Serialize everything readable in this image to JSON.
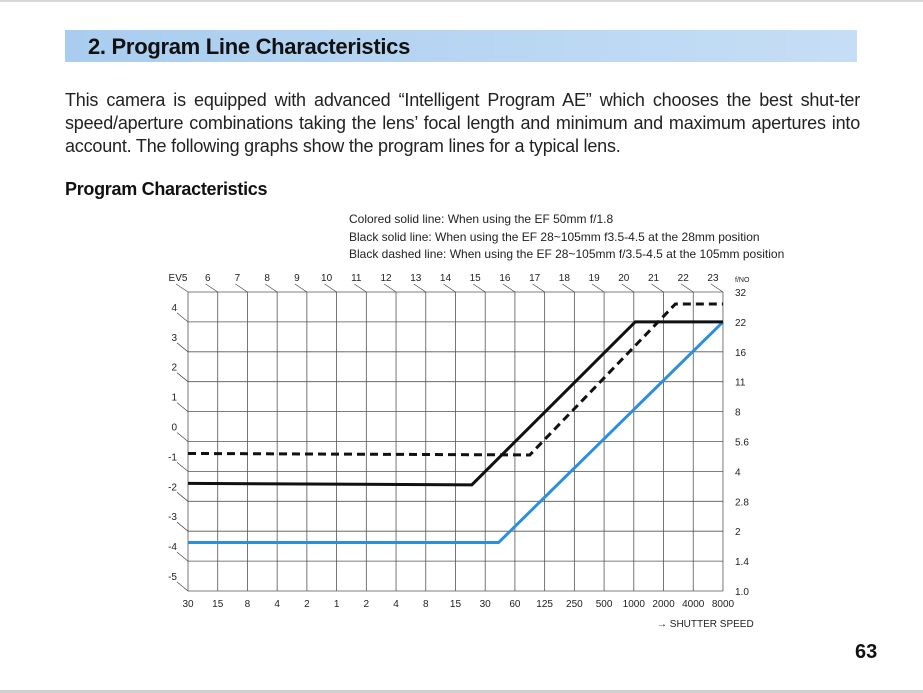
{
  "header": {
    "title": "2. Program Line Characteristics"
  },
  "intro": "This camera is equipped with advanced “Intelligent Program AE” which chooses the best shut-ter speed/aperture combinations taking the lens’ focal length and minimum and maximum apertures into account. The following graphs show the program lines for a typical lens.",
  "subtitle": "Program Characteristics",
  "legend": [
    "Colored solid line: When using the EF 50mm f/1.8",
    "Black solid line: When using the EF 28~105mm f3.5-4.5 at the 28mm position",
    "Black dashed line: When using the EF 28~105mm f/3.5-4.5 at the 105mm position"
  ],
  "page_number": "63",
  "chart_data": {
    "type": "line",
    "title": "Program Characteristics",
    "xlabel": "→ SHUTTER SPEED",
    "ylabel": "f/NO",
    "x_ticks": [
      "30",
      "15",
      "8",
      "4",
      "2",
      "1",
      "2",
      "4",
      "8",
      "15",
      "30",
      "60",
      "125",
      "250",
      "500",
      "1000",
      "2000",
      "4000",
      "8000"
    ],
    "y_ticks": [
      "1.0",
      "1.4",
      "2",
      "2.8",
      "4",
      "5.6",
      "8",
      "11",
      "16",
      "22",
      "32"
    ],
    "ev_top_labels": [
      "EV5",
      "6",
      "7",
      "8",
      "9",
      "10",
      "11",
      "12",
      "13",
      "14",
      "15",
      "16",
      "17",
      "18",
      "19",
      "20",
      "21",
      "22",
      "23"
    ],
    "ev_left_labels": [
      "4",
      "3",
      "2",
      "1",
      "0",
      "-1",
      "-2",
      "-3",
      "-4",
      "-5"
    ],
    "x_units": "shutter-speed stop index (0 = 30 s, 18 = 1/8000 s)",
    "y_units": "aperture stop index (0 = f/1.0, 10 = f/32)",
    "grid": true,
    "series": [
      {
        "name": "Colored solid line (EF 50mm f/1.8)",
        "style": "solid",
        "color": "#2b8fe0",
        "points": [
          [
            0,
            1.62
          ],
          [
            10.45,
            1.62
          ],
          [
            18,
            9.0
          ]
        ]
      },
      {
        "name": "Black solid line (EF 28~105mm at 28mm)",
        "style": "solid",
        "color": "#111111",
        "points": [
          [
            0,
            3.6
          ],
          [
            9.55,
            3.55
          ],
          [
            15.05,
            9.0
          ],
          [
            18,
            9.0
          ]
        ]
      },
      {
        "name": "Black dashed line (EF 28~105mm at 105mm)",
        "style": "dashed",
        "color": "#111111",
        "points": [
          [
            0,
            4.6
          ],
          [
            11.5,
            4.55
          ],
          [
            16.4,
            9.6
          ],
          [
            18,
            9.6
          ]
        ]
      }
    ]
  }
}
